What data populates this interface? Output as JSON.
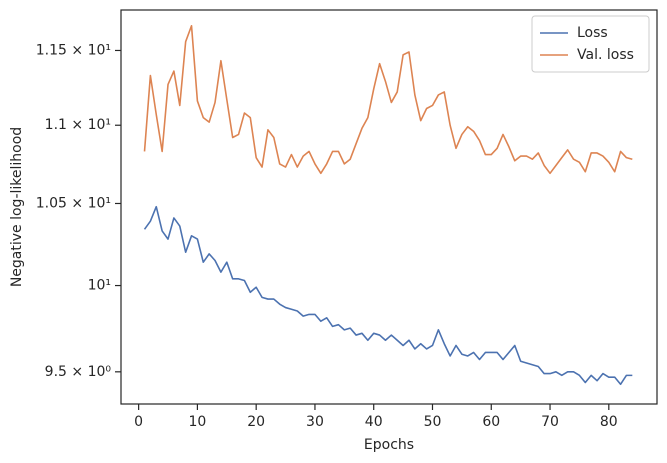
{
  "chart_data": {
    "type": "line",
    "xlabel": "Epochs",
    "ylabel": "Negative log-likelihood",
    "yscale": "log",
    "legend": "upper right",
    "grid": false,
    "x": [
      1,
      2,
      3,
      4,
      5,
      6,
      7,
      8,
      9,
      10,
      11,
      12,
      13,
      14,
      15,
      16,
      17,
      18,
      19,
      20,
      21,
      22,
      23,
      24,
      25,
      26,
      27,
      28,
      29,
      30,
      31,
      32,
      33,
      34,
      35,
      36,
      37,
      38,
      39,
      40,
      41,
      42,
      43,
      44,
      45,
      46,
      47,
      48,
      49,
      50,
      51,
      52,
      53,
      54,
      55,
      56,
      57,
      58,
      59,
      60,
      61,
      62,
      63,
      64,
      65,
      66,
      67,
      68,
      69,
      70,
      71,
      72,
      73,
      74,
      75,
      76,
      77,
      78,
      79,
      80,
      81,
      82,
      83,
      84
    ],
    "series": [
      {
        "name": "Loss",
        "color": "#4c72b0",
        "values": [
          10.34,
          10.39,
          10.48,
          10.33,
          10.28,
          10.41,
          10.36,
          10.2,
          10.3,
          10.28,
          10.14,
          10.19,
          10.15,
          10.08,
          10.14,
          10.04,
          10.04,
          10.03,
          9.96,
          9.99,
          9.93,
          9.92,
          9.92,
          9.89,
          9.87,
          9.86,
          9.85,
          9.82,
          9.83,
          9.83,
          9.79,
          9.81,
          9.76,
          9.77,
          9.74,
          9.75,
          9.71,
          9.72,
          9.68,
          9.72,
          9.71,
          9.68,
          9.71,
          9.68,
          9.65,
          9.68,
          9.63,
          9.66,
          9.63,
          9.65,
          9.74,
          9.66,
          9.59,
          9.65,
          9.6,
          9.59,
          9.61,
          9.57,
          9.61,
          9.61,
          9.61,
          9.57,
          9.61,
          9.65,
          9.56,
          9.55,
          9.54,
          9.53,
          9.49,
          9.49,
          9.5,
          9.48,
          9.5,
          9.5,
          9.48,
          9.44,
          9.48,
          9.45,
          9.49,
          9.47,
          9.47,
          9.43,
          9.48,
          9.48
        ]
      },
      {
        "name": "Val. loss",
        "color": "#dd8452",
        "values": [
          10.83,
          11.33,
          11.07,
          10.83,
          11.27,
          11.36,
          11.13,
          11.56,
          11.67,
          11.16,
          11.05,
          11.02,
          11.15,
          11.43,
          11.17,
          10.92,
          10.94,
          11.08,
          11.05,
          10.79,
          10.73,
          10.97,
          10.92,
          10.75,
          10.73,
          10.81,
          10.73,
          10.8,
          10.83,
          10.75,
          10.69,
          10.75,
          10.83,
          10.83,
          10.75,
          10.78,
          10.88,
          10.98,
          11.05,
          11.24,
          11.41,
          11.29,
          11.15,
          11.22,
          11.47,
          11.49,
          11.2,
          11.03,
          11.11,
          11.13,
          11.2,
          11.22,
          11.0,
          10.85,
          10.94,
          10.99,
          10.96,
          10.9,
          10.81,
          10.81,
          10.85,
          10.94,
          10.86,
          10.77,
          10.8,
          10.8,
          10.78,
          10.82,
          10.74,
          10.69,
          10.74,
          10.79,
          10.84,
          10.78,
          10.76,
          10.7,
          10.82,
          10.82,
          10.8,
          10.76,
          10.7,
          10.83,
          10.79,
          10.78
        ]
      }
    ],
    "xlim": [
      -3,
      88.2
    ],
    "xticks": [
      0,
      10,
      20,
      30,
      40,
      50,
      60,
      70,
      80
    ],
    "ylim": [
      9.32,
      11.78
    ],
    "yticks": [
      {
        "value": 9.5,
        "label": "9.5 × 10⁰"
      },
      {
        "value": 10,
        "label": "10¹"
      },
      {
        "value": 10.5,
        "label": "1.05 × 10¹"
      },
      {
        "value": 11,
        "label": "1.1 × 10¹"
      },
      {
        "value": 11.5,
        "label": "1.15 × 10¹"
      }
    ]
  }
}
